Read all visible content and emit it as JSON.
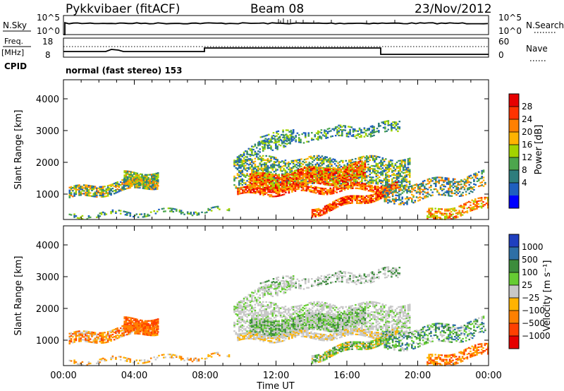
{
  "header": {
    "station": "Pykkvibaer (fitACF)",
    "beam": "Beam 08",
    "date": "23/Nov/2012"
  },
  "strip_labels": {
    "nsky": "N.Sky",
    "nsky_hi": "10^5",
    "nsky_lo": "10^0",
    "nsearch_hi": "10^5",
    "nsearch_lo": "10^0",
    "nsearch": "N.Search",
    "freq_top": "Freq.",
    "freq_unit": "[MHz]",
    "freq_hi": "18",
    "freq_lo": "8",
    "nave_hi": "60",
    "nave_lo": "0",
    "nave": "Nave",
    "cpid": "CPID",
    "mode": "normal (fast stereo) 153"
  },
  "chart_data": [
    {
      "type": "heatmap",
      "panel": "power",
      "ylabel": "Slant Range [km]",
      "xlabel": "",
      "yticks": [
        "1000",
        "2000",
        "3000",
        "4000"
      ],
      "ylim": [
        200,
        4600
      ],
      "xlim": [
        0,
        24
      ],
      "colorbar": {
        "label": "Power [dB]",
        "ticks": [
          "28",
          "24",
          "20",
          "16",
          "12",
          "8",
          "4"
        ],
        "colors": [
          "#e60000",
          "#ff3300",
          "#ff8000",
          "#ffb300",
          "#a3d400",
          "#4da64d",
          "#2e7d7d",
          "#1f5fbf",
          "#0000ff"
        ]
      },
      "regions": [
        {
          "x": [
            0.3,
            5.3
          ],
          "y": [
            900,
            1800
          ],
          "level": "mixed"
        },
        {
          "x": [
            9.6,
            19.8
          ],
          "y": [
            800,
            3200
          ],
          "level": "high"
        },
        {
          "x": [
            19.8,
            24.0
          ],
          "y": [
            300,
            2100
          ],
          "level": "low"
        }
      ]
    },
    {
      "type": "heatmap",
      "panel": "velocity",
      "ylabel": "Slant Range [km]",
      "xlabel": "Time UT",
      "xticks": [
        "00:00",
        "04:00",
        "08:00",
        "12:00",
        "16:00",
        "20:00",
        "00:00"
      ],
      "yticks": [
        "1000",
        "2000",
        "3000",
        "4000"
      ],
      "ylim": [
        200,
        4600
      ],
      "xlim": [
        0,
        24
      ],
      "colorbar": {
        "label": "Velocity [m s⁻¹]",
        "ticks": [
          "1000",
          "500",
          "100",
          "25",
          "−25",
          "−100",
          "−500",
          "−1000"
        ],
        "colors": [
          "#1f3fbf",
          "#2e6fa6",
          "#3c8c3c",
          "#66cc33",
          "#c8c8c8",
          "#ffb300",
          "#ff8000",
          "#ff4000",
          "#e60000"
        ]
      }
    }
  ]
}
